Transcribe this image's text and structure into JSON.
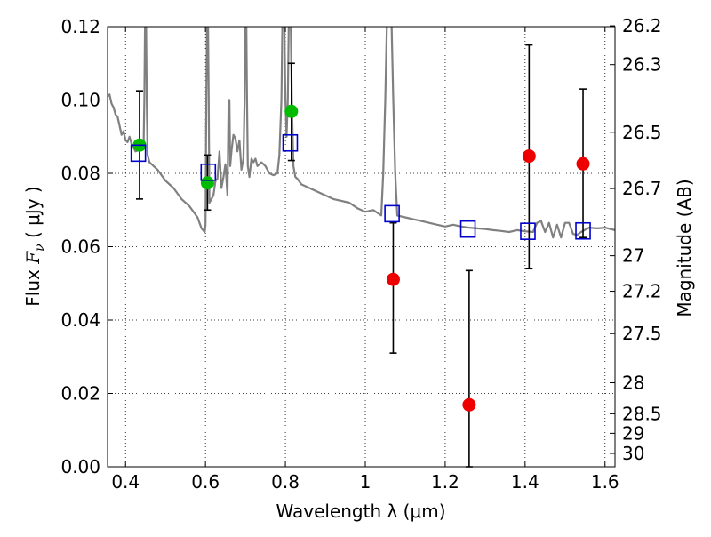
{
  "chart_data": {
    "type": "scatter",
    "xlabel": "Wavelength  λ (μm)",
    "ylabel_prefix": "Flux ",
    "ylabel_var": "F",
    "ylabel_sub": "ν",
    "ylabel_unit": " ( μJy )",
    "y2label": "Magnitude (AB)",
    "xlim": [
      0.355,
      1.625
    ],
    "ylim": [
      0.0,
      0.12
    ],
    "grid": true,
    "x_ticks": [
      {
        "v": 0.4,
        "label": "0.4"
      },
      {
        "v": 0.6,
        "label": "0.6"
      },
      {
        "v": 0.8,
        "label": "0.8"
      },
      {
        "v": 1.0,
        "label": "1"
      },
      {
        "v": 1.2,
        "label": "1.2"
      },
      {
        "v": 1.4,
        "label": "1.4"
      },
      {
        "v": 1.6,
        "label": "1.6"
      }
    ],
    "y_ticks": [
      {
        "v": 0.0,
        "label": "0.00"
      },
      {
        "v": 0.02,
        "label": "0.02"
      },
      {
        "v": 0.04,
        "label": "0.04"
      },
      {
        "v": 0.06,
        "label": "0.06"
      },
      {
        "v": 0.08,
        "label": "0.08"
      },
      {
        "v": 0.1,
        "label": "0.10"
      },
      {
        "v": 0.12,
        "label": "0.12"
      }
    ],
    "mag_ticks": [
      {
        "mag": 26.2,
        "label": "26.2"
      },
      {
        "mag": 26.3,
        "label": "26.3"
      },
      {
        "mag": 26.5,
        "label": "26.5"
      },
      {
        "mag": 26.7,
        "label": "26.7"
      },
      {
        "mag": 27.0,
        "label": "27"
      },
      {
        "mag": 27.2,
        "label": "27.2"
      },
      {
        "mag": 27.5,
        "label": "27.5"
      },
      {
        "mag": 28.0,
        "label": "28"
      },
      {
        "mag": 28.5,
        "label": "28.5"
      },
      {
        "mag": 29.0,
        "label": "29"
      },
      {
        "mag": 30.0,
        "label": "30"
      }
    ],
    "model_spectrum": {
      "name": "model SED",
      "color": "#808080",
      "points": [
        [
          0.355,
          0.101
        ],
        [
          0.36,
          0.1015
        ],
        [
          0.365,
          0.099
        ],
        [
          0.37,
          0.098
        ],
        [
          0.375,
          0.096
        ],
        [
          0.38,
          0.0955
        ],
        [
          0.385,
          0.093
        ],
        [
          0.39,
          0.0905
        ],
        [
          0.395,
          0.0915
        ],
        [
          0.4,
          0.089
        ],
        [
          0.405,
          0.0885
        ],
        [
          0.41,
          0.09
        ],
        [
          0.415,
          0.088
        ],
        [
          0.42,
          0.087
        ],
        [
          0.425,
          0.086
        ],
        [
          0.43,
          0.0862
        ],
        [
          0.435,
          0.087
        ],
        [
          0.44,
          0.0865
        ],
        [
          0.445,
          0.087
        ],
        [
          0.447,
          0.1
        ],
        [
          0.449,
          0.125
        ],
        [
          0.451,
          0.125
        ],
        [
          0.453,
          0.1
        ],
        [
          0.455,
          0.085
        ],
        [
          0.46,
          0.083
        ],
        [
          0.48,
          0.081
        ],
        [
          0.5,
          0.078
        ],
        [
          0.52,
          0.076
        ],
        [
          0.54,
          0.073
        ],
        [
          0.56,
          0.071
        ],
        [
          0.58,
          0.068
        ],
        [
          0.59,
          0.065
        ],
        [
          0.598,
          0.064
        ],
        [
          0.6,
          0.066
        ],
        [
          0.602,
          0.1
        ],
        [
          0.604,
          0.125
        ],
        [
          0.606,
          0.125
        ],
        [
          0.608,
          0.1
        ],
        [
          0.61,
          0.072
        ],
        [
          0.62,
          0.074
        ],
        [
          0.625,
          0.078
        ],
        [
          0.63,
          0.0785
        ],
        [
          0.635,
          0.086
        ],
        [
          0.64,
          0.076
        ],
        [
          0.645,
          0.079
        ],
        [
          0.65,
          0.0825
        ],
        [
          0.655,
          0.074
        ],
        [
          0.658,
          0.1
        ],
        [
          0.66,
          0.1
        ],
        [
          0.662,
          0.082
        ],
        [
          0.665,
          0.086
        ],
        [
          0.67,
          0.0905
        ],
        [
          0.675,
          0.0895
        ],
        [
          0.68,
          0.086
        ],
        [
          0.685,
          0.089
        ],
        [
          0.69,
          0.081
        ],
        [
          0.695,
          0.084
        ],
        [
          0.698,
          0.1
        ],
        [
          0.7,
          0.125
        ],
        [
          0.702,
          0.125
        ],
        [
          0.704,
          0.1
        ],
        [
          0.706,
          0.082
        ],
        [
          0.71,
          0.079
        ],
        [
          0.715,
          0.084
        ],
        [
          0.72,
          0.083
        ],
        [
          0.725,
          0.084
        ],
        [
          0.73,
          0.082
        ],
        [
          0.74,
          0.083
        ],
        [
          0.75,
          0.082
        ],
        [
          0.76,
          0.08
        ],
        [
          0.77,
          0.0795
        ],
        [
          0.78,
          0.08
        ],
        [
          0.785,
          0.085
        ],
        [
          0.79,
          0.1
        ],
        [
          0.793,
          0.125
        ],
        [
          0.797,
          0.125
        ],
        [
          0.8,
          0.1
        ],
        [
          0.803,
          0.09
        ],
        [
          0.806,
          0.1
        ],
        [
          0.809,
          0.125
        ],
        [
          0.813,
          0.125
        ],
        [
          0.816,
          0.1
        ],
        [
          0.82,
          0.082
        ],
        [
          0.825,
          0.079
        ],
        [
          0.83,
          0.0785
        ],
        [
          0.84,
          0.077
        ],
        [
          0.86,
          0.076
        ],
        [
          0.88,
          0.075
        ],
        [
          0.9,
          0.074
        ],
        [
          0.92,
          0.073
        ],
        [
          0.94,
          0.0725
        ],
        [
          0.96,
          0.072
        ],
        [
          0.98,
          0.0705
        ],
        [
          1.0,
          0.0695
        ],
        [
          1.02,
          0.07
        ],
        [
          1.04,
          0.0685
        ],
        [
          1.045,
          0.08
        ],
        [
          1.05,
          0.1
        ],
        [
          1.055,
          0.125
        ],
        [
          1.065,
          0.125
        ],
        [
          1.07,
          0.1
        ],
        [
          1.075,
          0.08
        ],
        [
          1.08,
          0.0685
        ],
        [
          1.1,
          0.068
        ],
        [
          1.12,
          0.0675
        ],
        [
          1.14,
          0.067
        ],
        [
          1.16,
          0.0665
        ],
        [
          1.18,
          0.066
        ],
        [
          1.2,
          0.0655
        ],
        [
          1.22,
          0.066
        ],
        [
          1.24,
          0.0655
        ],
        [
          1.26,
          0.0652
        ],
        [
          1.28,
          0.065
        ],
        [
          1.3,
          0.0648
        ],
        [
          1.32,
          0.0645
        ],
        [
          1.34,
          0.0643
        ],
        [
          1.36,
          0.064
        ],
        [
          1.38,
          0.0645
        ],
        [
          1.4,
          0.0642
        ],
        [
          1.42,
          0.064
        ],
        [
          1.43,
          0.0665
        ],
        [
          1.44,
          0.067
        ],
        [
          1.45,
          0.064
        ],
        [
          1.46,
          0.0665
        ],
        [
          1.47,
          0.0625
        ],
        [
          1.48,
          0.066
        ],
        [
          1.49,
          0.0625
        ],
        [
          1.5,
          0.0665
        ],
        [
          1.51,
          0.0665
        ],
        [
          1.52,
          0.0635
        ],
        [
          1.53,
          0.0632
        ],
        [
          1.54,
          0.064
        ],
        [
          1.56,
          0.0652
        ],
        [
          1.58,
          0.065
        ],
        [
          1.6,
          0.0652
        ],
        [
          1.625,
          0.0645
        ]
      ]
    },
    "series": [
      {
        "name": "observed (green)",
        "marker": "circle",
        "color": "#00bb00",
        "points": [
          {
            "x": 0.435,
            "y": 0.0877,
            "yerr_low": 0.073,
            "yerr_high": 0.1025
          },
          {
            "x": 0.605,
            "y": 0.0774,
            "yerr_low": 0.07,
            "yerr_high": 0.085
          },
          {
            "x": 0.815,
            "y": 0.0969,
            "yerr_low": 0.0835,
            "yerr_high": 0.11
          }
        ]
      },
      {
        "name": "observed (red)",
        "marker": "circle",
        "color": "#ee0000",
        "points": [
          {
            "x": 1.07,
            "y": 0.0511,
            "yerr_low": 0.031,
            "yerr_high": 0.0665
          },
          {
            "x": 1.26,
            "y": 0.0169,
            "yerr_low": 0.0,
            "yerr_high": 0.0535
          },
          {
            "x": 1.41,
            "y": 0.0847,
            "yerr_low": 0.054,
            "yerr_high": 0.115
          },
          {
            "x": 1.545,
            "y": 0.0826,
            "yerr_low": 0.0625,
            "yerr_high": 0.103
          }
        ]
      },
      {
        "name": "model photometry",
        "marker": "square",
        "color": "#0000cc",
        "points": [
          {
            "x": 0.432,
            "y": 0.0855
          },
          {
            "x": 0.607,
            "y": 0.0803
          },
          {
            "x": 0.812,
            "y": 0.0883
          },
          {
            "x": 1.067,
            "y": 0.069
          },
          {
            "x": 1.257,
            "y": 0.0648
          },
          {
            "x": 1.407,
            "y": 0.0642
          },
          {
            "x": 1.545,
            "y": 0.0643
          }
        ]
      }
    ]
  }
}
